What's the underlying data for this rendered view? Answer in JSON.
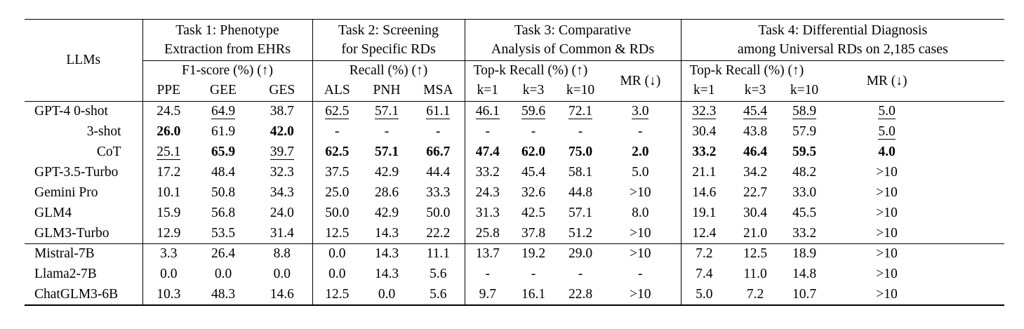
{
  "table": {
    "llm_header": "LLMs",
    "groups": [
      {
        "title": "Task 1: Phenotype\nExtraction from EHRs",
        "metric_label": "F1-score (%) (↑)",
        "sub_cols": [
          "PPE",
          "GEE",
          "GES"
        ]
      },
      {
        "title": "Task 2: Screening\nfor Specific RDs",
        "metric_label": "Recall (%) (↑)",
        "sub_cols": [
          "ALS",
          "PNH",
          "MSA"
        ]
      },
      {
        "title": "Task 3: Comparative\nAnalysis of Common & RDs",
        "metric_label": "Top-k Recall (%) (↑)",
        "sub_cols": [
          "k=1",
          "k=3",
          "k=10"
        ],
        "mr_label": "MR (↓)"
      },
      {
        "title": "Task 4: Differential Diagnosis\namong Universal RDs on 2,185 cases",
        "metric_label": "Top-k Recall (%) (↑)",
        "sub_cols": [
          "k=1",
          "k=3",
          "k=10"
        ],
        "mr_label": "MR (↓)"
      }
    ],
    "style_legend": {
      "b": "best (bold)",
      "u": "second-best (underlined)",
      "n": "normal"
    },
    "rows": [
      {
        "llm": "GPT-4 0-shot",
        "align": "left",
        "separator_above": false,
        "cells": [
          {
            "v": "24.5",
            "s": "n"
          },
          {
            "v": "64.9",
            "s": "u"
          },
          {
            "v": "38.7",
            "s": "n"
          },
          {
            "v": "62.5",
            "s": "u"
          },
          {
            "v": "57.1",
            "s": "u"
          },
          {
            "v": "61.1",
            "s": "u"
          },
          {
            "v": "46.1",
            "s": "u"
          },
          {
            "v": "59.6",
            "s": "u"
          },
          {
            "v": "72.1",
            "s": "u"
          },
          {
            "v": "3.0",
            "s": "u"
          },
          {
            "v": "32.3",
            "s": "u"
          },
          {
            "v": "45.4",
            "s": "u"
          },
          {
            "v": "58.9",
            "s": "u"
          },
          {
            "v": "5.0",
            "s": "u"
          }
        ]
      },
      {
        "llm": "3-shot",
        "align": "right",
        "separator_above": false,
        "cells": [
          {
            "v": "26.0",
            "s": "b"
          },
          {
            "v": "61.9",
            "s": "n"
          },
          {
            "v": "42.0",
            "s": "b"
          },
          {
            "v": "-",
            "s": "n"
          },
          {
            "v": "-",
            "s": "n"
          },
          {
            "v": "-",
            "s": "n"
          },
          {
            "v": "-",
            "s": "n"
          },
          {
            "v": "-",
            "s": "n"
          },
          {
            "v": "-",
            "s": "n"
          },
          {
            "v": "-",
            "s": "n"
          },
          {
            "v": "30.4",
            "s": "n"
          },
          {
            "v": "43.8",
            "s": "n"
          },
          {
            "v": "57.9",
            "s": "n"
          },
          {
            "v": "5.0",
            "s": "u"
          }
        ]
      },
      {
        "llm": "CoT",
        "align": "right",
        "separator_above": false,
        "cells": [
          {
            "v": "25.1",
            "s": "u"
          },
          {
            "v": "65.9",
            "s": "b"
          },
          {
            "v": "39.7",
            "s": "u"
          },
          {
            "v": "62.5",
            "s": "b"
          },
          {
            "v": "57.1",
            "s": "b"
          },
          {
            "v": "66.7",
            "s": "b"
          },
          {
            "v": "47.4",
            "s": "b"
          },
          {
            "v": "62.0",
            "s": "b"
          },
          {
            "v": "75.0",
            "s": "b"
          },
          {
            "v": "2.0",
            "s": "b"
          },
          {
            "v": "33.2",
            "s": "b"
          },
          {
            "v": "46.4",
            "s": "b"
          },
          {
            "v": "59.5",
            "s": "b"
          },
          {
            "v": "4.0",
            "s": "b"
          }
        ]
      },
      {
        "llm": "GPT-3.5-Turbo",
        "align": "left",
        "separator_above": false,
        "cells": [
          {
            "v": "17.2",
            "s": "n"
          },
          {
            "v": "48.4",
            "s": "n"
          },
          {
            "v": "32.3",
            "s": "n"
          },
          {
            "v": "37.5",
            "s": "n"
          },
          {
            "v": "42.9",
            "s": "n"
          },
          {
            "v": "44.4",
            "s": "n"
          },
          {
            "v": "33.2",
            "s": "n"
          },
          {
            "v": "45.4",
            "s": "n"
          },
          {
            "v": "58.1",
            "s": "n"
          },
          {
            "v": "5.0",
            "s": "n"
          },
          {
            "v": "21.1",
            "s": "n"
          },
          {
            "v": "34.2",
            "s": "n"
          },
          {
            "v": "48.2",
            "s": "n"
          },
          {
            "v": ">10",
            "s": "n"
          }
        ]
      },
      {
        "llm": "Gemini Pro",
        "align": "left",
        "separator_above": false,
        "cells": [
          {
            "v": "10.1",
            "s": "n"
          },
          {
            "v": "50.8",
            "s": "n"
          },
          {
            "v": "34.3",
            "s": "n"
          },
          {
            "v": "25.0",
            "s": "n"
          },
          {
            "v": "28.6",
            "s": "n"
          },
          {
            "v": "33.3",
            "s": "n"
          },
          {
            "v": "24.3",
            "s": "n"
          },
          {
            "v": "32.6",
            "s": "n"
          },
          {
            "v": "44.8",
            "s": "n"
          },
          {
            "v": ">10",
            "s": "n"
          },
          {
            "v": "14.6",
            "s": "n"
          },
          {
            "v": "22.7",
            "s": "n"
          },
          {
            "v": "33.0",
            "s": "n"
          },
          {
            "v": ">10",
            "s": "n"
          }
        ]
      },
      {
        "llm": "GLM4",
        "align": "left",
        "separator_above": false,
        "cells": [
          {
            "v": "15.9",
            "s": "n"
          },
          {
            "v": "56.8",
            "s": "n"
          },
          {
            "v": "24.0",
            "s": "n"
          },
          {
            "v": "50.0",
            "s": "n"
          },
          {
            "v": "42.9",
            "s": "n"
          },
          {
            "v": "50.0",
            "s": "n"
          },
          {
            "v": "31.3",
            "s": "n"
          },
          {
            "v": "42.5",
            "s": "n"
          },
          {
            "v": "57.1",
            "s": "n"
          },
          {
            "v": "8.0",
            "s": "n"
          },
          {
            "v": "19.1",
            "s": "n"
          },
          {
            "v": "30.4",
            "s": "n"
          },
          {
            "v": "45.5",
            "s": "n"
          },
          {
            "v": ">10",
            "s": "n"
          }
        ]
      },
      {
        "llm": "GLM3-Turbo",
        "align": "left",
        "separator_above": false,
        "cells": [
          {
            "v": "12.9",
            "s": "n"
          },
          {
            "v": "53.5",
            "s": "n"
          },
          {
            "v": "31.4",
            "s": "n"
          },
          {
            "v": "12.5",
            "s": "n"
          },
          {
            "v": "14.3",
            "s": "n"
          },
          {
            "v": "22.2",
            "s": "n"
          },
          {
            "v": "25.8",
            "s": "n"
          },
          {
            "v": "37.8",
            "s": "n"
          },
          {
            "v": "51.2",
            "s": "n"
          },
          {
            "v": ">10",
            "s": "n"
          },
          {
            "v": "12.4",
            "s": "n"
          },
          {
            "v": "21.0",
            "s": "n"
          },
          {
            "v": "33.2",
            "s": "n"
          },
          {
            "v": ">10",
            "s": "n"
          }
        ]
      },
      {
        "llm": "Mistral-7B",
        "align": "left",
        "separator_above": true,
        "cells": [
          {
            "v": "3.3",
            "s": "n"
          },
          {
            "v": "26.4",
            "s": "n"
          },
          {
            "v": "8.8",
            "s": "n"
          },
          {
            "v": "0.0",
            "s": "n"
          },
          {
            "v": "14.3",
            "s": "n"
          },
          {
            "v": "11.1",
            "s": "n"
          },
          {
            "v": "13.7",
            "s": "n"
          },
          {
            "v": "19.2",
            "s": "n"
          },
          {
            "v": "29.0",
            "s": "n"
          },
          {
            "v": ">10",
            "s": "n"
          },
          {
            "v": "7.2",
            "s": "n"
          },
          {
            "v": "12.5",
            "s": "n"
          },
          {
            "v": "18.9",
            "s": "n"
          },
          {
            "v": ">10",
            "s": "n"
          }
        ]
      },
      {
        "llm": "Llama2-7B",
        "align": "left",
        "separator_above": false,
        "cells": [
          {
            "v": "0.0",
            "s": "n"
          },
          {
            "v": "0.0",
            "s": "n"
          },
          {
            "v": "0.0",
            "s": "n"
          },
          {
            "v": "0.0",
            "s": "n"
          },
          {
            "v": "14.3",
            "s": "n"
          },
          {
            "v": "5.6",
            "s": "n"
          },
          {
            "v": "-",
            "s": "n"
          },
          {
            "v": "-",
            "s": "n"
          },
          {
            "v": "-",
            "s": "n"
          },
          {
            "v": "-",
            "s": "n"
          },
          {
            "v": "7.4",
            "s": "n"
          },
          {
            "v": "11.0",
            "s": "n"
          },
          {
            "v": "14.8",
            "s": "n"
          },
          {
            "v": ">10",
            "s": "n"
          }
        ]
      },
      {
        "llm": "ChatGLM3-6B",
        "align": "left",
        "separator_above": false,
        "cells": [
          {
            "v": "10.3",
            "s": "n"
          },
          {
            "v": "48.3",
            "s": "n"
          },
          {
            "v": "14.6",
            "s": "n"
          },
          {
            "v": "12.5",
            "s": "n"
          },
          {
            "v": "0.0",
            "s": "n"
          },
          {
            "v": "5.6",
            "s": "n"
          },
          {
            "v": "9.7",
            "s": "n"
          },
          {
            "v": "16.1",
            "s": "n"
          },
          {
            "v": "22.8",
            "s": "n"
          },
          {
            "v": ">10",
            "s": "n"
          },
          {
            "v": "5.0",
            "s": "n"
          },
          {
            "v": "7.2",
            "s": "n"
          },
          {
            "v": "10.7",
            "s": "n"
          },
          {
            "v": ">10",
            "s": "n"
          }
        ]
      }
    ]
  }
}
